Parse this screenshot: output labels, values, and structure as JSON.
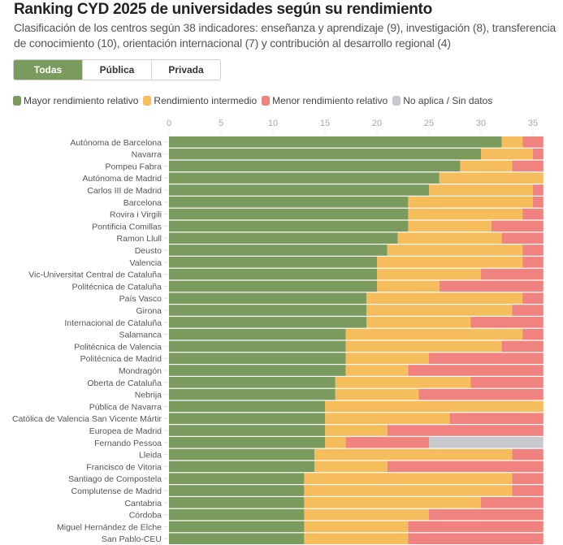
{
  "header": {
    "title": "Ranking CYD 2025 de universidades según su rendimiento",
    "subtitle": "Clasificación de los centros según 38 indicadores: enseñanza y aprendizaje (9), investigación (8), transferencia de conocimiento (10), orientación internacional (7) y contribución al desarrollo regional (4)"
  },
  "filters": {
    "buttons": [
      {
        "label": "Todas",
        "active": true
      },
      {
        "label": "Pública",
        "active": false
      },
      {
        "label": "Privada",
        "active": false
      }
    ]
  },
  "colors": {
    "mayor": "#7a9a5e",
    "intermedio": "#f6bd5c",
    "menor": "#f08380",
    "sin_datos": "#c9cad0",
    "active_button": "#7a9a5e"
  },
  "chart_data": {
    "type": "bar",
    "orientation": "horizontal",
    "stacked": true,
    "title": "Ranking CYD 2025 de universidades según su rendimiento",
    "xlabel": "",
    "ylabel": "",
    "xlim": [
      0,
      36
    ],
    "xticks": [
      0,
      5,
      10,
      15,
      20,
      25,
      30,
      35
    ],
    "grid": true,
    "legend_position": "top-left",
    "categories": [
      "Autónoma de Barcelona",
      "Navarra",
      "Pompeu Fabra",
      "Autónoma de Madrid",
      "Carlos III de Madrid",
      "Barcelona",
      "Rovira i Virgili",
      "Pontificia Comillas",
      "Ramon Llull",
      "Deusto",
      "Valencia",
      "Vic-Universitat Central de Cataluña",
      "Politécnica de Cataluña",
      "País Vasco",
      "Girona",
      "Internacional de Cataluña",
      "Salamanca",
      "Politécnica de Valencia",
      "Politécnica de Madrid",
      "Mondragón",
      "Oberta de Cataluña",
      "Nebrija",
      "Pública de Navarra",
      "Católica de Valencia San Vicente Mártir",
      "Europea de Madrid",
      "Fernando Pessoa",
      "Lleida",
      "Francisco de Vitoria",
      "Santiago de Compostela",
      "Complutense de Madrid",
      "Cantabria",
      "Córdoba",
      "Miguel Hernández de Elche",
      "San Pablo-CEU"
    ],
    "series": [
      {
        "name": "Mayor rendimiento relativo",
        "key": "mayor",
        "values": [
          32,
          30,
          28,
          26,
          25,
          23,
          23,
          23,
          22,
          21,
          20,
          20,
          20,
          19,
          19,
          19,
          17,
          17,
          17,
          17,
          16,
          16,
          15,
          15,
          15,
          15,
          14,
          14,
          13,
          13,
          13,
          13,
          13,
          13
        ]
      },
      {
        "name": "Rendimiento intermedio",
        "key": "intermedio",
        "values": [
          2,
          5,
          5,
          10,
          10,
          12,
          11,
          8,
          10,
          13,
          14,
          10,
          6,
          15,
          14,
          10,
          17,
          15,
          8,
          6,
          13,
          8,
          21,
          12,
          6,
          2,
          19,
          7,
          20,
          20,
          17,
          12,
          10,
          10
        ]
      },
      {
        "name": "Menor rendimiento relativo",
        "key": "menor",
        "values": [
          2,
          1,
          3,
          0,
          1,
          1,
          2,
          5,
          4,
          2,
          2,
          6,
          10,
          2,
          3,
          7,
          2,
          4,
          11,
          13,
          7,
          12,
          0,
          9,
          15,
          8,
          3,
          15,
          3,
          3,
          6,
          11,
          13,
          13
        ]
      },
      {
        "name": "No aplica / Sin datos",
        "key": "sin_datos",
        "values": [
          0,
          0,
          0,
          0,
          0,
          0,
          0,
          0,
          0,
          0,
          0,
          0,
          0,
          0,
          0,
          0,
          0,
          0,
          0,
          0,
          0,
          0,
          0,
          0,
          0,
          11,
          0,
          0,
          0,
          0,
          0,
          0,
          0,
          0
        ]
      }
    ]
  }
}
